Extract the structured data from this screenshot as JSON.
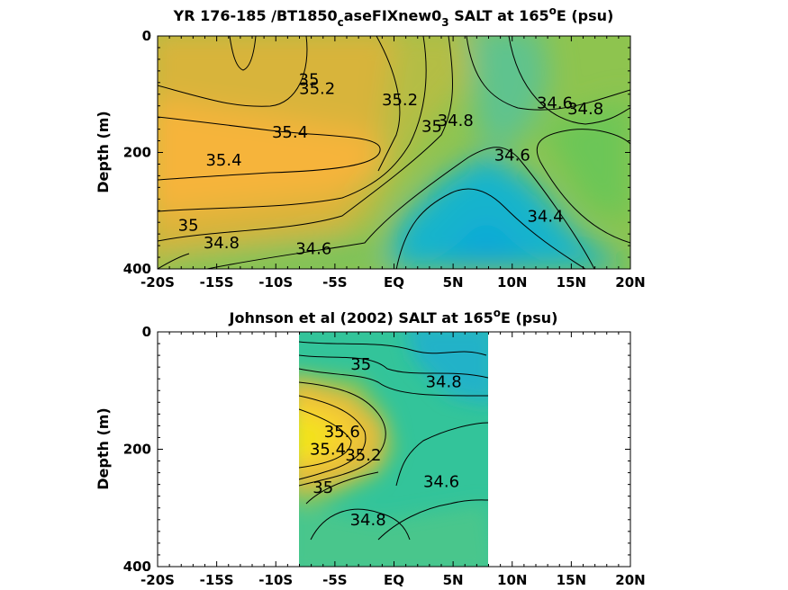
{
  "chart_data": [
    {
      "type": "heatmap",
      "title_main": "YR 176-185 /BT1850",
      "title_sub": "c",
      "title_mid": "aseFIXnew0",
      "title_sub2": "3",
      "title_end": " SALT at 165",
      "title_sup": "o",
      "title_tail": "E (psu)",
      "ylabel": "Depth (m)",
      "xlim": [
        -20,
        20
      ],
      "ylim": [
        0,
        400
      ],
      "y_reversed": true,
      "x_ticks": [
        -20,
        -15,
        -10,
        -5,
        0,
        5,
        10,
        15,
        20
      ],
      "x_ticklabels": [
        "-20S",
        "-15S",
        "-10S",
        "-5S",
        "EQ",
        "5N",
        "10N",
        "15N",
        "20N"
      ],
      "y_ticks": [
        0,
        200,
        400
      ],
      "y_ticklabels": [
        "0",
        "200",
        "400"
      ],
      "contour_levels": [
        34.4,
        34.6,
        34.8,
        35.0,
        35.2,
        35.4
      ],
      "contour_labels": [
        {
          "text": "35",
          "x": -7.2,
          "y": 75
        },
        {
          "text": "35.2",
          "x": -6.5,
          "y": 90
        },
        {
          "text": "35.2",
          "x": 0.5,
          "y": 110
        },
        {
          "text": "35.4",
          "x": -8.8,
          "y": 165
        },
        {
          "text": "35.4",
          "x": -14.4,
          "y": 213
        },
        {
          "text": "35",
          "x": 3.2,
          "y": 155
        },
        {
          "text": "34.8",
          "x": 5.2,
          "y": 145
        },
        {
          "text": "34.6",
          "x": 13.6,
          "y": 115
        },
        {
          "text": "34.8",
          "x": 16.2,
          "y": 125
        },
        {
          "text": "34.6",
          "x": 10.0,
          "y": 205
        },
        {
          "text": "34.4",
          "x": 12.8,
          "y": 310
        },
        {
          "text": "35",
          "x": -17.4,
          "y": 325
        },
        {
          "text": "34.8",
          "x": -14.6,
          "y": 355
        },
        {
          "text": "34.6",
          "x": -6.8,
          "y": 365
        }
      ]
    },
    {
      "type": "heatmap",
      "title_main": "Johnson et al (2002) SALT at 165",
      "title_sup": "o",
      "title_tail": "E (psu)",
      "ylabel": "Depth (m)",
      "xlim": [
        -20,
        20
      ],
      "ylim": [
        0,
        400
      ],
      "y_reversed": true,
      "data_x_range": [
        -8,
        8
      ],
      "x_ticks": [
        -20,
        -15,
        -10,
        -5,
        0,
        5,
        10,
        15,
        20
      ],
      "x_ticklabels": [
        "-20S",
        "-15S",
        "-10S",
        "-5S",
        "EQ",
        "5N",
        "10N",
        "15N",
        "20N"
      ],
      "y_ticks": [
        0,
        200,
        400
      ],
      "y_ticklabels": [
        "0",
        "200",
        "400"
      ],
      "contour_levels": [
        34.4,
        34.6,
        34.8,
        35.0,
        35.2,
        35.4,
        35.6
      ],
      "contour_labels": [
        {
          "text": "35",
          "x": -2.8,
          "y": 55
        },
        {
          "text": "34.8",
          "x": 4.2,
          "y": 85
        },
        {
          "text": "35.6",
          "x": -4.4,
          "y": 170
        },
        {
          "text": "35.4",
          "x": -5.6,
          "y": 200
        },
        {
          "text": "35.2",
          "x": -2.6,
          "y": 210
        },
        {
          "text": "34.6",
          "x": 4.0,
          "y": 255
        },
        {
          "text": "35",
          "x": -6.0,
          "y": 265
        },
        {
          "text": "34.8",
          "x": -2.2,
          "y": 320
        }
      ]
    }
  ]
}
